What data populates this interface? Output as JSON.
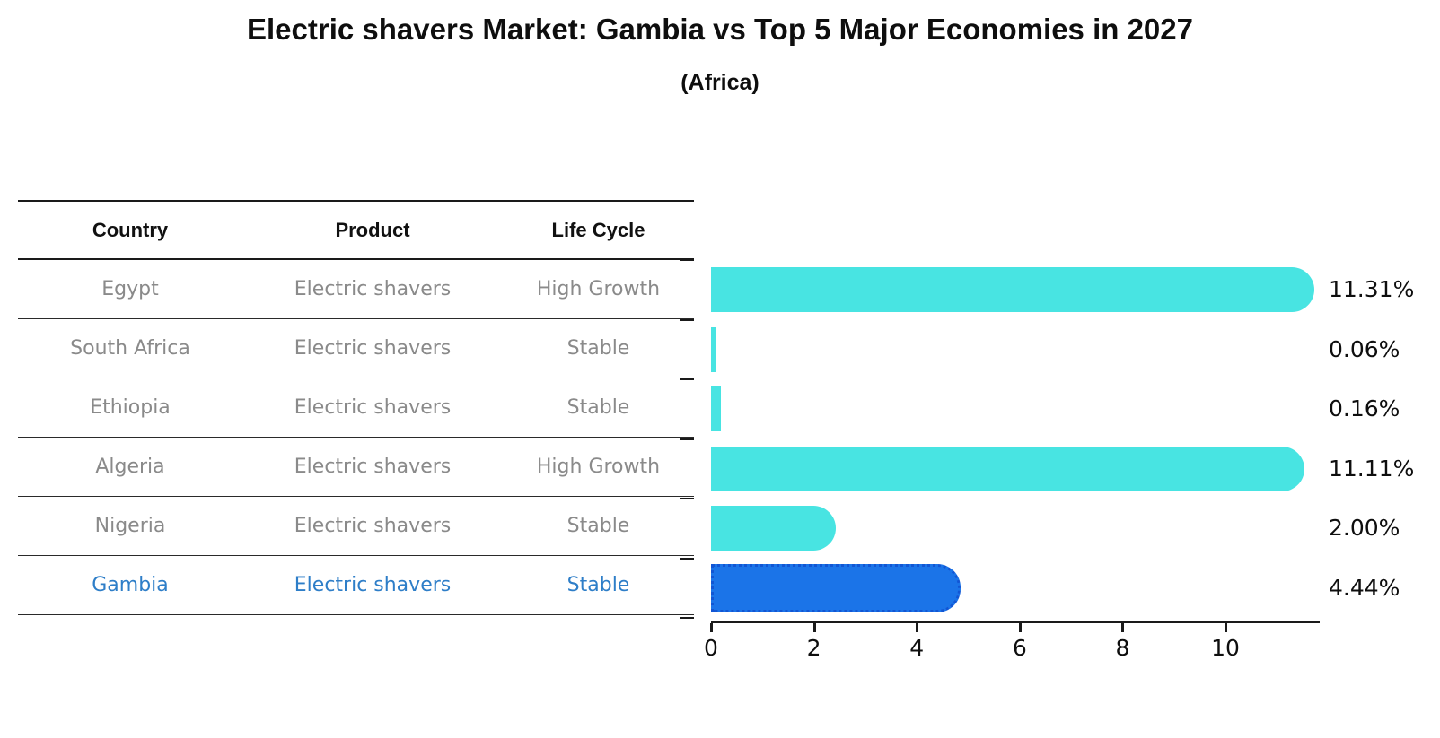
{
  "chart_data": {
    "type": "bar",
    "orientation": "horizontal",
    "title": "Electric shavers Market: Gambia vs Top 5 Major Economies in 2027",
    "subtitle": "(Africa)",
    "categories": [
      "Egypt",
      "South Africa",
      "Ethiopia",
      "Algeria",
      "Nigeria",
      "Gambia"
    ],
    "values": [
      11.31,
      0.06,
      0.16,
      11.11,
      2.0,
      4.44
    ],
    "value_labels": [
      "11.31%",
      "0.06%",
      "0.16%",
      "11.11%",
      "2.00%",
      "4.44%"
    ],
    "x_ticks": [
      0,
      2,
      4,
      6,
      8,
      10
    ],
    "x_tick_labels": [
      "0",
      "2",
      "4",
      "6",
      "8",
      "10"
    ],
    "xlim": [
      0,
      11.83
    ],
    "grid": false,
    "legend": "none",
    "bar_color": "#48e4e2",
    "highlight_index": 5,
    "highlight_bar_color": "#1b74e8",
    "highlight_bar_border_color": "#1256d4"
  },
  "table": {
    "headers": [
      "Country",
      "Product",
      "Life Cycle"
    ],
    "rows": [
      {
        "country": "Egypt",
        "product": "Electric shavers",
        "life_cycle": "High Growth",
        "highlight": false
      },
      {
        "country": "South Africa",
        "product": "Electric shavers",
        "life_cycle": "Stable",
        "highlight": false
      },
      {
        "country": "Ethiopia",
        "product": "Electric shavers",
        "life_cycle": "Stable",
        "highlight": false
      },
      {
        "country": "Algeria",
        "product": "Electric shavers",
        "life_cycle": "High Growth",
        "highlight": false
      },
      {
        "country": "Nigeria",
        "product": "Electric shavers",
        "life_cycle": "Stable",
        "highlight": false
      },
      {
        "country": "Gambia",
        "product": "Electric shavers",
        "life_cycle": "Stable",
        "highlight": true
      }
    ]
  },
  "colors": {
    "text_black": "#0e0e0e",
    "text_gray": "#8a8a8a",
    "highlight_text_blue": "#2e7ec8",
    "bar_turquoise": "#48e4e2",
    "bar_blue": "#1b74e8",
    "bar_blue_border": "#1256d4",
    "line_black": "#1a1a1a"
  }
}
